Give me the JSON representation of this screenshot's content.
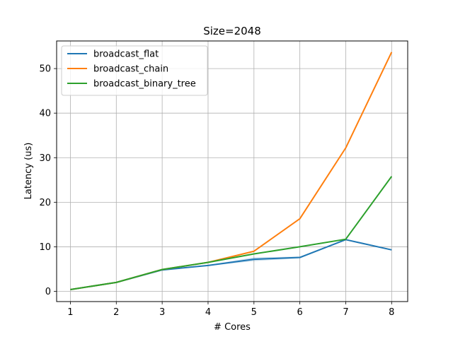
{
  "chart_data": {
    "type": "line",
    "title": "Size=2048",
    "xlabel": "# Cores",
    "ylabel": "Latency (us)",
    "x": [
      1,
      2,
      3,
      4,
      5,
      6,
      7,
      8
    ],
    "xlim": [
      0.7,
      8.35
    ],
    "ylim": [
      -2.3,
      56.2
    ],
    "xticks": [
      1,
      2,
      3,
      4,
      5,
      6,
      7,
      8
    ],
    "yticks": [
      0,
      10,
      20,
      30,
      40,
      50
    ],
    "grid": true,
    "legend_position": "top-left",
    "series": [
      {
        "name": "broadcast_flat",
        "color": "#1f77b4",
        "values": [
          0.4,
          2.0,
          4.8,
          5.8,
          7.2,
          7.6,
          11.6,
          9.3
        ],
        "band_low": [
          0.4,
          2.0,
          4.7,
          5.7,
          6.8,
          7.4,
          11.5,
          9.2
        ],
        "band_high": [
          0.4,
          2.0,
          4.9,
          5.9,
          7.6,
          7.8,
          11.7,
          9.4
        ]
      },
      {
        "name": "broadcast_chain",
        "color": "#ff7f0e",
        "values": [
          0.4,
          2.0,
          4.9,
          6.5,
          9.0,
          16.3,
          32.2,
          53.7
        ]
      },
      {
        "name": "broadcast_binary_tree",
        "color": "#2ca02c",
        "values": [
          0.4,
          2.0,
          4.9,
          6.5,
          8.4,
          10.0,
          11.7,
          25.8
        ]
      }
    ]
  }
}
